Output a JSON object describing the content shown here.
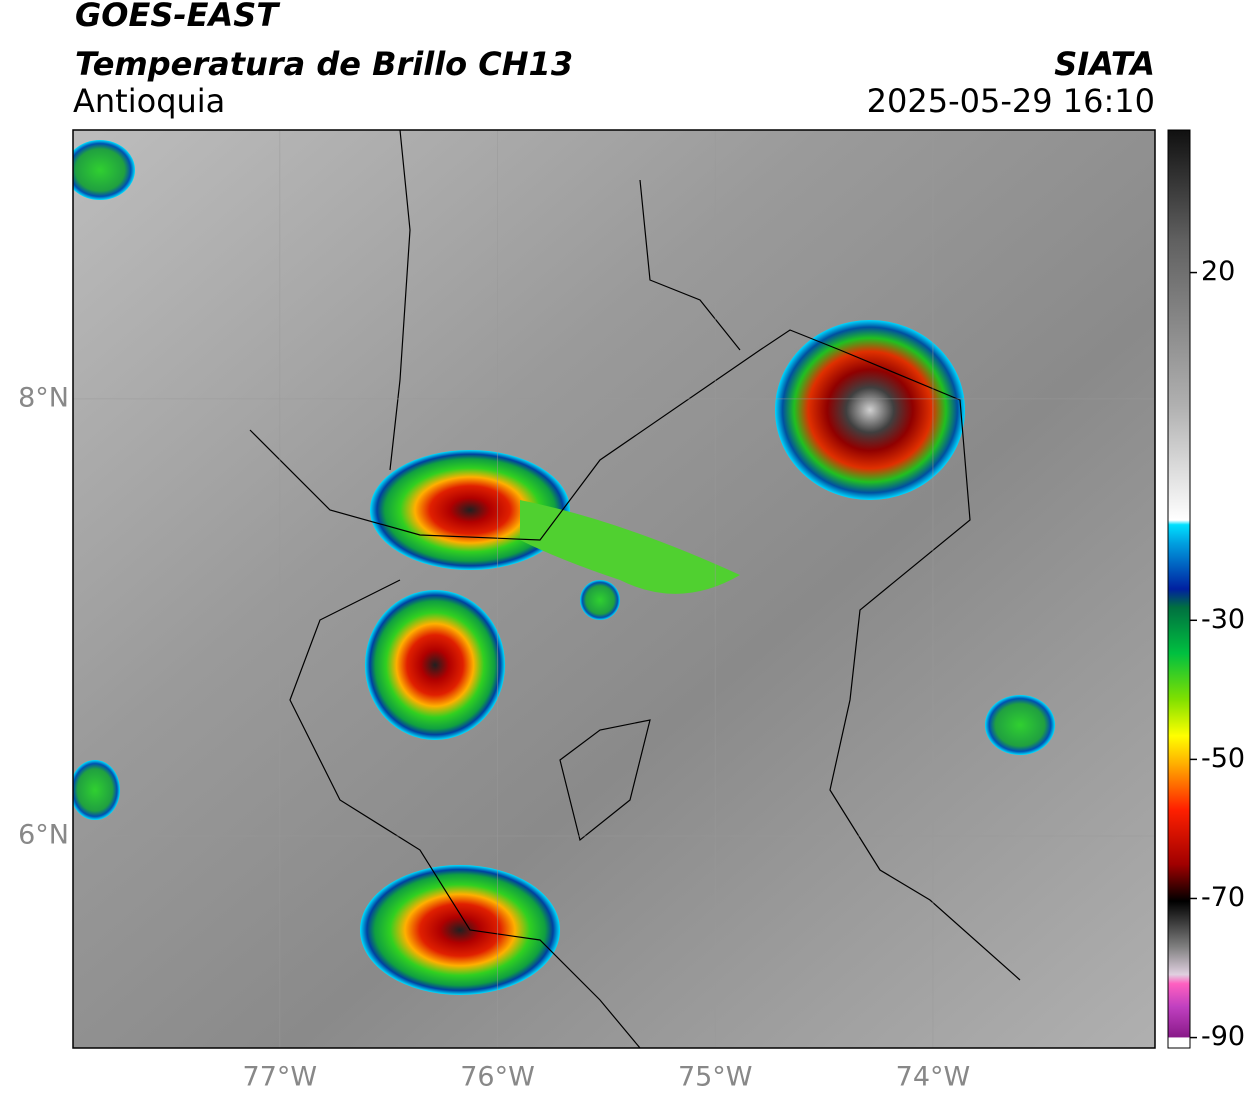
{
  "header": {
    "title": "GOES-EAST",
    "subtitle": "Temperatura de Brillo CH13",
    "region": "Antioquia",
    "source": "SIATA",
    "datetime": "2025-05-29 16:10"
  },
  "map": {
    "xlim": [
      -77.95,
      -72.98
    ],
    "ylim": [
      5.03,
      9.23
    ],
    "xticks": [
      {
        "value": -77,
        "label": "77°W"
      },
      {
        "value": -76,
        "label": "76°W"
      },
      {
        "value": -75,
        "label": "75°W"
      },
      {
        "value": -74,
        "label": "74°W"
      }
    ],
    "yticks": [
      {
        "value": 8,
        "label": "8°N"
      },
      {
        "value": 6,
        "label": "6°N"
      }
    ],
    "grid": true
  },
  "colorbar": {
    "lim": [
      -91.5,
      40.5
    ],
    "ticks": [
      20,
      -30,
      -50,
      -70,
      -90
    ]
  }
}
